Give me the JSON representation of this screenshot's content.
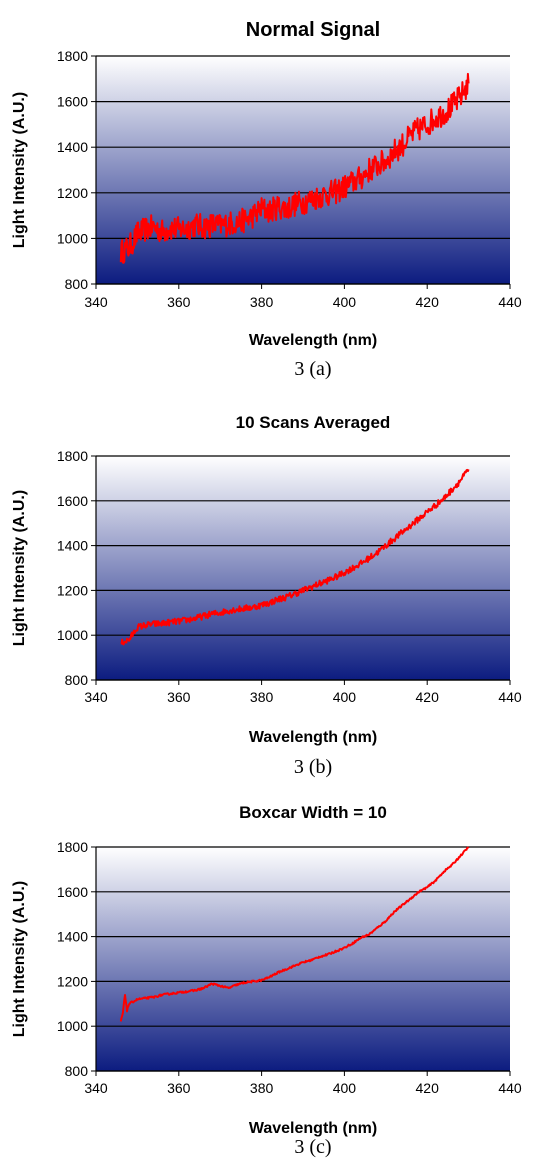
{
  "chart_data": [
    {
      "type": "line",
      "title": "Normal Signal",
      "caption": "3 (a)",
      "xlabel": "Wavelength (nm)",
      "ylabel": "Light Intensity (A.U.)",
      "xlim": [
        340,
        440
      ],
      "ylim": [
        800,
        1800
      ],
      "xticks": [
        "340",
        "360",
        "380",
        "400",
        "420",
        "440"
      ],
      "yticks": [
        "800",
        "1000",
        "1200",
        "1400",
        "1600",
        "1800"
      ],
      "grid": true,
      "line_color": "#ff0000",
      "background_gradient": [
        "#ffffff",
        "#0c1c80"
      ],
      "series": [
        {
          "x": [
            346,
            348,
            350,
            352,
            354,
            356,
            358,
            360,
            362,
            364,
            366,
            368,
            370,
            372,
            374,
            376,
            378,
            380,
            382,
            384,
            386,
            388,
            390,
            392,
            394,
            396,
            398,
            400,
            402,
            404,
            406,
            408,
            410,
            412,
            414,
            416,
            418,
            420,
            422,
            424,
            426,
            428,
            430
          ],
          "y": [
            940,
            960,
            1020,
            1040,
            1050,
            1030,
            1045,
            1040,
            1045,
            1060,
            1050,
            1060,
            1055,
            1065,
            1070,
            1080,
            1100,
            1130,
            1120,
            1140,
            1130,
            1150,
            1160,
            1170,
            1185,
            1195,
            1205,
            1225,
            1245,
            1265,
            1300,
            1320,
            1340,
            1380,
            1410,
            1450,
            1480,
            1500,
            1530,
            1550,
            1580,
            1620,
            1680
          ],
          "noise": 55
        }
      ]
    },
    {
      "type": "line",
      "title": "10 Scans Averaged",
      "caption": "3 (b)",
      "xlabel": "Wavelength (nm)",
      "ylabel": "Light Intensity (A.U.)",
      "xlim": [
        340,
        440
      ],
      "ylim": [
        800,
        1800
      ],
      "xticks": [
        "340",
        "360",
        "380",
        "400",
        "420",
        "440"
      ],
      "yticks": [
        "800",
        "1000",
        "1200",
        "1400",
        "1600",
        "1800"
      ],
      "grid": true,
      "line_color": "#ff0000",
      "background_gradient": [
        "#ffffff",
        "#0c1c80"
      ],
      "series": [
        {
          "x": [
            346,
            348,
            350,
            352,
            354,
            356,
            358,
            360,
            362,
            364,
            366,
            368,
            370,
            372,
            374,
            376,
            378,
            380,
            382,
            384,
            386,
            388,
            390,
            392,
            394,
            396,
            398,
            400,
            402,
            404,
            406,
            408,
            410,
            412,
            414,
            416,
            418,
            420,
            422,
            424,
            426,
            428,
            430
          ],
          "y": [
            965,
            980,
            1035,
            1045,
            1050,
            1052,
            1058,
            1062,
            1068,
            1075,
            1085,
            1095,
            1100,
            1110,
            1115,
            1120,
            1125,
            1135,
            1145,
            1160,
            1170,
            1185,
            1200,
            1215,
            1230,
            1245,
            1260,
            1280,
            1300,
            1320,
            1345,
            1370,
            1400,
            1430,
            1460,
            1490,
            1520,
            1550,
            1580,
            1610,
            1650,
            1690,
            1740
          ],
          "noise": 14
        }
      ]
    },
    {
      "type": "line",
      "title": "Boxcar Width = 10",
      "caption": "3 (c)",
      "xlabel": "Wavelength (nm)",
      "ylabel": "Light Intensity (A.U.)",
      "xlim": [
        340,
        440
      ],
      "ylim": [
        800,
        1800
      ],
      "xticks": [
        "340",
        "360",
        "380",
        "400",
        "420",
        "440"
      ],
      "yticks": [
        "800",
        "1000",
        "1200",
        "1400",
        "1600",
        "1800"
      ],
      "grid": true,
      "line_color": "#ff0000",
      "background_gradient": [
        "#ffffff",
        "#0c1c80"
      ],
      "series": [
        {
          "x": [
            346,
            346.5,
            347,
            347.5,
            348,
            350,
            352,
            354,
            356,
            358,
            360,
            362,
            364,
            366,
            368,
            370,
            372,
            374,
            376,
            378,
            380,
            382,
            384,
            386,
            388,
            390,
            392,
            394,
            396,
            398,
            400,
            402,
            404,
            406,
            408,
            410,
            412,
            414,
            416,
            418,
            420,
            422,
            424,
            426,
            428,
            430
          ],
          "y": [
            1020,
            1060,
            1140,
            1070,
            1100,
            1120,
            1125,
            1130,
            1140,
            1145,
            1150,
            1155,
            1160,
            1170,
            1190,
            1180,
            1170,
            1185,
            1195,
            1200,
            1205,
            1220,
            1240,
            1255,
            1270,
            1285,
            1295,
            1310,
            1320,
            1335,
            1350,
            1370,
            1395,
            1410,
            1440,
            1470,
            1510,
            1540,
            1570,
            1600,
            1620,
            1650,
            1690,
            1720,
            1760,
            1800
          ],
          "noise": 4
        }
      ]
    }
  ]
}
